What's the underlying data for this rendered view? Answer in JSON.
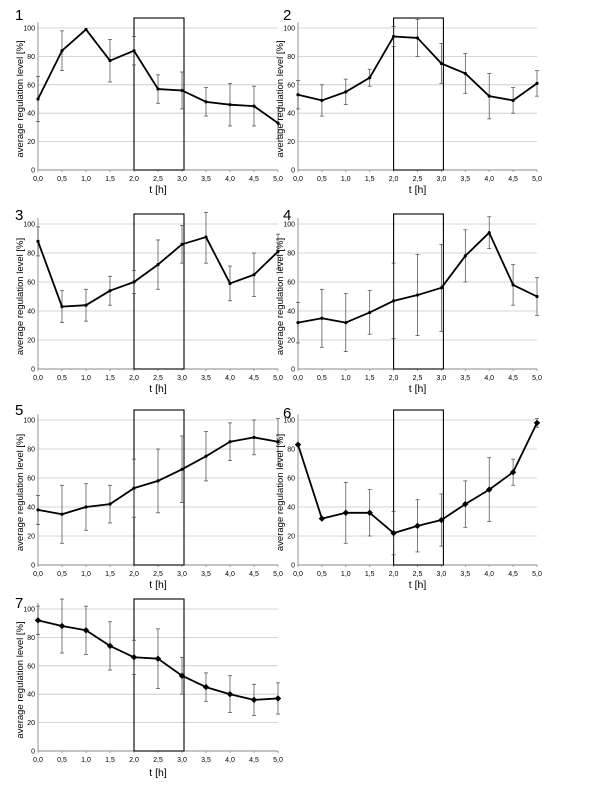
{
  "chart_data": [
    {
      "type": "line",
      "panel_label": "1",
      "xlabel": "t [h]",
      "ylabel": "average regulation level [%]",
      "x": [
        "0,0",
        "0,5",
        "1,0",
        "1,5",
        "2,0",
        "2,5",
        "3,0",
        "3,5",
        "4,0",
        "4,5",
        "5,0"
      ],
      "y_ticks": [
        "0",
        "20",
        "40",
        "60",
        "80",
        "100"
      ],
      "ylim": [
        0,
        100
      ],
      "values": [
        50,
        84,
        99,
        77,
        84,
        57,
        56,
        48,
        46,
        45,
        33
      ],
      "errors": [
        16,
        14,
        0,
        15,
        10,
        10,
        13,
        10,
        15,
        14,
        11
      ],
      "highlight_window": [
        2.0,
        3.0
      ],
      "grid": true,
      "markers": false
    },
    {
      "type": "line",
      "panel_label": "2",
      "xlabel": "t [h]",
      "ylabel": "average regulation level [%]",
      "x": [
        "0,0",
        "0,5",
        "1,0",
        "1,5",
        "2,0",
        "2,5",
        "3,0",
        "3,5",
        "4,0",
        "4,5",
        "5,0"
      ],
      "y_ticks": [
        "0",
        "20",
        "40",
        "60",
        "80",
        "100"
      ],
      "ylim": [
        0,
        100
      ],
      "values": [
        53,
        49,
        55,
        65,
        94,
        93,
        75,
        68,
        52,
        49,
        61
      ],
      "errors": [
        10,
        11,
        9,
        6,
        7,
        13,
        14,
        14,
        16,
        9,
        9
      ],
      "highlight_window": [
        2.0,
        3.0
      ],
      "grid": true,
      "markers": false
    },
    {
      "type": "line",
      "panel_label": "3",
      "xlabel": "t [h]",
      "ylabel": "average regulation level [%]",
      "x": [
        "0,0",
        "0,5",
        "1,0",
        "1,5",
        "2,0",
        "2,5",
        "3,0",
        "3,5",
        "4,0",
        "4,5",
        "5,0"
      ],
      "y_ticks": [
        "0",
        "20",
        "40",
        "60",
        "80",
        "100"
      ],
      "ylim": [
        0,
        100
      ],
      "values": [
        88,
        43,
        44,
        54,
        60,
        72,
        86,
        91,
        59,
        65,
        81
      ],
      "errors": [
        10,
        11,
        11,
        10,
        8,
        17,
        13,
        18,
        12,
        15,
        12
      ],
      "highlight_window": [
        2.0,
        3.0
      ],
      "grid": true,
      "markers": false
    },
    {
      "type": "line",
      "panel_label": "4",
      "xlabel": "t [h]",
      "ylabel": "average regulation level [%]",
      "x": [
        "0,0",
        "0,5",
        "1,0",
        "1,5",
        "2,0",
        "2,5",
        "3,0",
        "3,5",
        "4,0",
        "4,5",
        "5,0"
      ],
      "y_ticks": [
        "0",
        "20",
        "40",
        "60",
        "80",
        "100"
      ],
      "ylim": [
        0,
        100
      ],
      "values": [
        32,
        35,
        32,
        39,
        47,
        51,
        56,
        78,
        94,
        58,
        50
      ],
      "errors": [
        14,
        20,
        20,
        15,
        26,
        28,
        30,
        18,
        11,
        14,
        13
      ],
      "highlight_window": [
        2.0,
        3.0
      ],
      "grid": true,
      "markers": false
    },
    {
      "type": "line",
      "panel_label": "5",
      "xlabel": "t [h]",
      "ylabel": "average regulation level [%]",
      "x": [
        "0,0",
        "0,5",
        "1,0",
        "1,5",
        "2,0",
        "2,5",
        "3,0",
        "3,5",
        "4,0",
        "4,5",
        "5,0"
      ],
      "y_ticks": [
        "0",
        "20",
        "40",
        "60",
        "80",
        "100"
      ],
      "ylim": [
        0,
        100
      ],
      "values": [
        38,
        35,
        40,
        42,
        53,
        58,
        66,
        75,
        85,
        88,
        85
      ],
      "errors": [
        10,
        20,
        16,
        13,
        20,
        22,
        23,
        17,
        13,
        12,
        16
      ],
      "highlight_window": [
        2.0,
        3.0
      ],
      "grid": true,
      "markers": false
    },
    {
      "type": "line",
      "panel_label": "6",
      "xlabel": "t [h]",
      "ylabel": "average regulation level [%]",
      "x": [
        "0,0",
        "0,5",
        "1,0",
        "1,5",
        "2,0",
        "2,5",
        "3,0",
        "3,5",
        "4,0",
        "4,5",
        "5,0"
      ],
      "y_ticks": [
        "0",
        "20",
        "40",
        "60",
        "80",
        "100"
      ],
      "ylim": [
        0,
        100
      ],
      "values": [
        83,
        32,
        36,
        36,
        22,
        27,
        31,
        42,
        52,
        64,
        98
      ],
      "errors": [
        0,
        0,
        21,
        16,
        15,
        18,
        18,
        16,
        22,
        9,
        3
      ],
      "highlight_window": [
        2.0,
        3.0
      ],
      "grid": true,
      "markers": true
    },
    {
      "type": "line",
      "panel_label": "7",
      "xlabel": "t [h]",
      "ylabel": "average regulation level [%]",
      "x": [
        "0,0",
        "0,5",
        "1,0",
        "1,5",
        "2,0",
        "2,5",
        "3,0",
        "3,5",
        "4,0",
        "4,5",
        "5,0"
      ],
      "y_ticks": [
        "0",
        "20",
        "40",
        "60",
        "80",
        "100"
      ],
      "ylim": [
        0,
        100
      ],
      "values": [
        92,
        88,
        85,
        74,
        66,
        65,
        53,
        45,
        40,
        36,
        37
      ],
      "errors": [
        10,
        19,
        17,
        17,
        12,
        21,
        13,
        10,
        13,
        11,
        11
      ],
      "highlight_window": [
        2.0,
        3.0
      ],
      "grid": true,
      "markers": true
    }
  ]
}
